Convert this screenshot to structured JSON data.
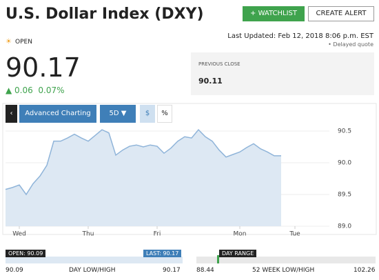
{
  "header": {
    "title": "U.S. Dollar Index (DXY)",
    "watchlist": "+ WATCHLIST",
    "alert": "CREATE ALERT"
  },
  "quote": {
    "status": "OPEN",
    "last_updated": "Last Updated: Feb 12, 2018 8:06 p.m. EST",
    "delayed": "• Delayed quote",
    "price": "90.17",
    "change": "0.06",
    "change_percent": "0.07%",
    "previous_close_label": "PREVIOUS CLOSE",
    "previous_close": "90.11"
  },
  "toolbar": {
    "advanced": "Advanced Charting",
    "range": "5D",
    "dollar": "$",
    "percent": "%"
  },
  "chart_data": {
    "type": "line",
    "series": [
      {
        "color": "#8fb4d9",
        "fill": "#dde8f3",
        "values": [
          89.58,
          89.61,
          89.65,
          89.5,
          89.67,
          89.79,
          89.96,
          90.34,
          90.34,
          90.39,
          90.45,
          90.39,
          90.34,
          90.43,
          90.52,
          90.47,
          90.12,
          90.2,
          90.26,
          90.28,
          90.25,
          90.28,
          90.26,
          90.15,
          90.23,
          90.34,
          90.41,
          90.39,
          90.52,
          90.41,
          90.34,
          90.2,
          90.09,
          90.13,
          90.17,
          90.24,
          90.3,
          90.22,
          90.17,
          90.11,
          90.11
        ]
      }
    ],
    "xlim": [
      0,
      47
    ],
    "xticks": [
      {
        "value": 2,
        "label": "Wed"
      },
      {
        "value": 12,
        "label": "Thu"
      },
      {
        "value": 22,
        "label": "Fri"
      },
      {
        "value": 34,
        "label": "Mon"
      },
      {
        "value": 42,
        "label": "Tue"
      }
    ],
    "ylim": [
      89.0,
      90.63
    ],
    "yticks": [
      {
        "value": 89,
        "label": "89.0"
      },
      89.5,
      {
        "value": 90,
        "label": "90.0"
      },
      90.5
    ],
    "grid": true
  },
  "ranges": {
    "open": "OPEN: 90.09",
    "last": "LAST: 90.17",
    "day_low": "90.09",
    "day_label": "DAY LOW/HIGH",
    "day_high": "90.17",
    "day_range": "DAY RANGE",
    "week_low": "88.44",
    "week_label": "52 WEEK LOW/HIGH",
    "week_high": "102.26"
  }
}
